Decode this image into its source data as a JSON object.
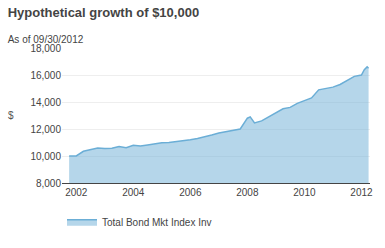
{
  "chart_data": {
    "type": "area",
    "title": "Hypothetical growth of $10,000",
    "subtitle": "As of 09/30/2012",
    "ylabel": "$",
    "x": [
      2001.75,
      2002.0,
      2002.25,
      2002.5,
      2002.75,
      2003.0,
      2003.25,
      2003.5,
      2003.75,
      2004.0,
      2004.25,
      2004.5,
      2004.75,
      2005.0,
      2005.25,
      2005.5,
      2005.75,
      2006.0,
      2006.25,
      2006.5,
      2006.75,
      2007.0,
      2007.25,
      2007.5,
      2007.75,
      2008.0,
      2008.1,
      2008.2,
      2008.25,
      2008.5,
      2008.75,
      2009.0,
      2009.25,
      2009.5,
      2009.75,
      2010.0,
      2010.25,
      2010.5,
      2010.75,
      2011.0,
      2011.25,
      2011.5,
      2011.75,
      2012.0,
      2012.1,
      2012.2,
      2012.25
    ],
    "series": [
      {
        "name": "Total Bond Mkt Index Inv",
        "color": "#6baed6",
        "values": [
          10000,
          10000,
          10350,
          10500,
          10600,
          10550,
          10580,
          10700,
          10620,
          10800,
          10750,
          10820,
          10900,
          10980,
          11000,
          11050,
          11100,
          11200,
          11300,
          11400,
          11550,
          11700,
          11800,
          11900,
          12000,
          12800,
          12900,
          12600,
          12450,
          12600,
          12900,
          13200,
          13500,
          13600,
          13900,
          14100,
          14300,
          14900,
          15000,
          15100,
          15300,
          15600,
          15900,
          16000,
          16400,
          16600,
          16500
        ]
      }
    ],
    "xlim": [
      2001.5,
      2012.3
    ],
    "xticks": [
      2002,
      2004,
      2006,
      2008,
      2010,
      2012
    ],
    "ylim": [
      8000,
      18000
    ],
    "yticks": [
      {
        "value": 8000,
        "label": "8,000"
      },
      {
        "value": 10000,
        "label": "10,000"
      },
      {
        "value": 12000,
        "label": "12,000"
      },
      {
        "value": 14000,
        "label": "14,000"
      },
      {
        "value": 16000,
        "label": "16,000"
      },
      {
        "value": 18000,
        "label": "18,000"
      }
    ],
    "grid": true,
    "legend": "bottom"
  }
}
